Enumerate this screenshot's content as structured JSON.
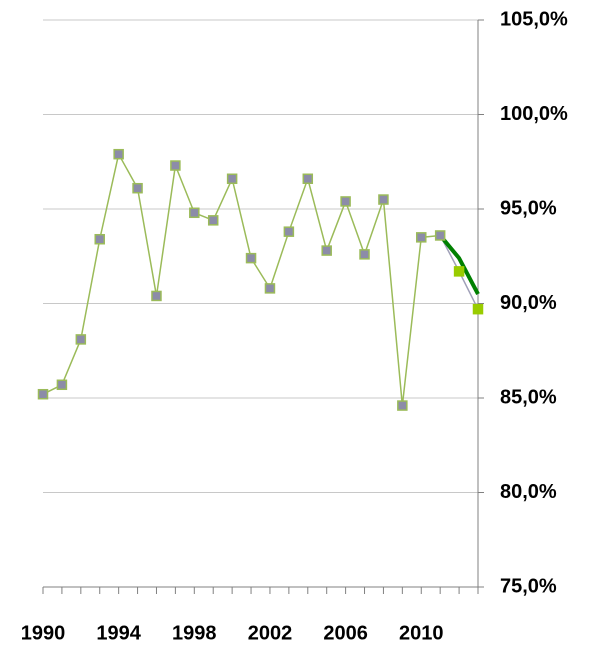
{
  "chart_data": {
    "type": "line",
    "x": [
      1990,
      1991,
      1992,
      1993,
      1994,
      1995,
      1996,
      1997,
      1998,
      1999,
      2000,
      2001,
      2002,
      2003,
      2004,
      2005,
      2006,
      2007,
      2008,
      2009,
      2010,
      2011,
      2012,
      2013
    ],
    "series": [
      {
        "color": "#9bbb59",
        "marker_fill": "#8c8ca8",
        "marker_stroke": "#9bbb59",
        "line_width": 1.5,
        "values": [
          85.2,
          85.7,
          88.1,
          93.4,
          97.9,
          96.1,
          90.4,
          97.3,
          94.8,
          94.4,
          96.6,
          92.4,
          90.8,
          93.8,
          96.6,
          92.8,
          95.4,
          92.6,
          95.5,
          84.6,
          93.5,
          93.6,
          null,
          null
        ]
      },
      {
        "color": "#a0a0b8",
        "marker_fill": "#99cc00",
        "marker_stroke": "#99cc00",
        "line_width": 1.5,
        "values": [
          null,
          null,
          null,
          null,
          null,
          null,
          null,
          null,
          null,
          null,
          null,
          null,
          null,
          null,
          null,
          null,
          null,
          null,
          null,
          null,
          null,
          93.6,
          91.7,
          89.7
        ]
      },
      {
        "color": "#008000",
        "line_width": 4,
        "values": [
          null,
          null,
          null,
          null,
          null,
          null,
          null,
          null,
          null,
          null,
          null,
          null,
          null,
          null,
          null,
          null,
          null,
          null,
          null,
          null,
          null,
          93.6,
          92.4,
          90.5
        ]
      }
    ],
    "xlim": [
      1990,
      2013
    ],
    "xticks": [
      1990,
      1994,
      1998,
      2002,
      2006,
      2010
    ],
    "ylim": [
      75,
      105
    ],
    "yticks": [
      {
        "value": 75,
        "label": "75,0%"
      },
      {
        "value": 80,
        "label": "80,0%"
      },
      {
        "value": 85,
        "label": "85,0%"
      },
      {
        "value": 90,
        "label": "90,0%"
      },
      {
        "value": 95,
        "label": "95,0%"
      },
      {
        "value": 100,
        "label": "100,0%"
      },
      {
        "value": 105,
        "label": "105,0%"
      }
    ],
    "grid": true
  }
}
